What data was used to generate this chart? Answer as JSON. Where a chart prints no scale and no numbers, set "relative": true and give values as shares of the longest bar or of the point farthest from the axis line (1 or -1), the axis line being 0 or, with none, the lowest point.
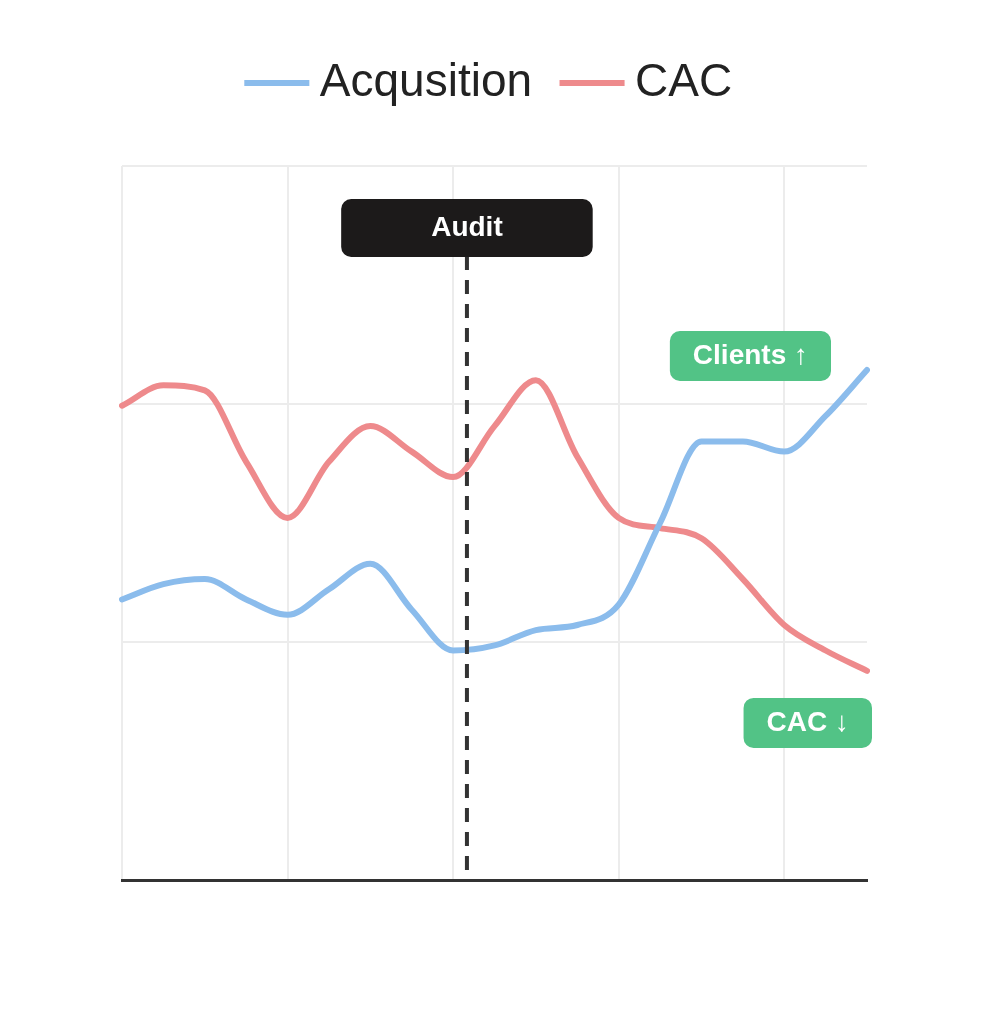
{
  "chart_data": {
    "type": "line",
    "relative": true,
    "categories": [
      null,
      null,
      null,
      null,
      null,
      null,
      null,
      null,
      null,
      null,
      null,
      null,
      null,
      null,
      null,
      null,
      null,
      null,
      null
    ],
    "series": [
      {
        "name": "Acqusition",
        "color": "#8bbcec",
        "values": [
          0.55,
          0.58,
          0.59,
          0.55,
          0.52,
          0.57,
          0.62,
          0.53,
          0.45,
          0.46,
          0.49,
          0.5,
          0.54,
          0.7,
          0.86,
          0.86,
          0.84,
          0.91,
          1
        ]
      },
      {
        "name": "CAC",
        "color": "#ee8a8c",
        "values": [
          0.93,
          0.97,
          0.96,
          0.82,
          0.71,
          0.82,
          0.89,
          0.84,
          0.79,
          0.89,
          0.98,
          0.83,
          0.71,
          0.69,
          0.67,
          0.59,
          0.5,
          0.45,
          0.41
        ]
      }
    ],
    "annotations": [
      "Audit",
      "Clients ↑",
      "CAC ↓"
    ],
    "grid": true,
    "legend": "top",
    "marker": "none",
    "line_style": "solid"
  }
}
